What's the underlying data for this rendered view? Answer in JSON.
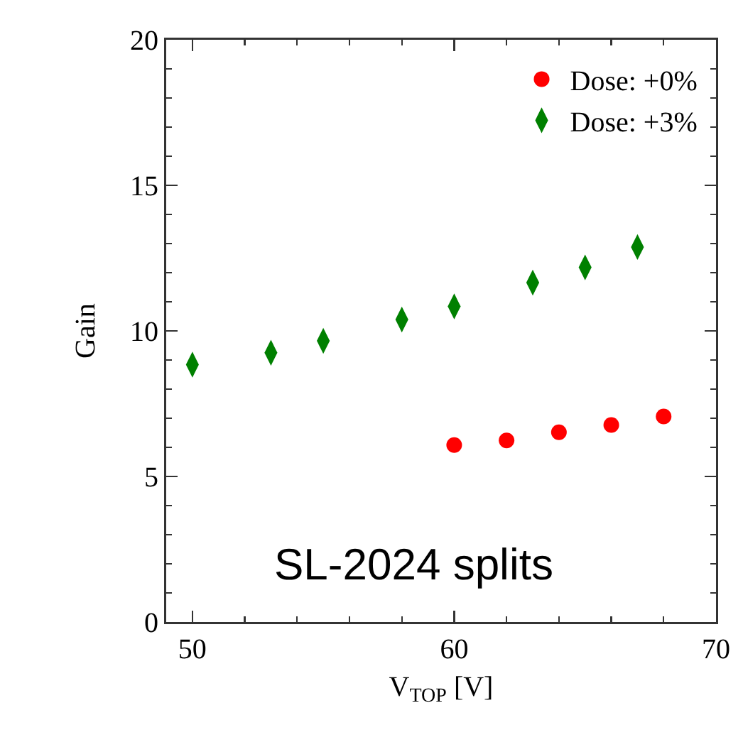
{
  "chart_data": {
    "type": "scatter",
    "xlabel": "V$_{TOP}$ [V]",
    "ylabel": "Gain",
    "xlim": [
      49,
      70
    ],
    "xticks": [
      50,
      60,
      70
    ],
    "ylim": [
      0,
      20
    ],
    "yticks": [
      0,
      5,
      10,
      15,
      20
    ],
    "grid": false,
    "legend": "top right",
    "annotations": [
      "SL-2024 splits"
    ],
    "series": [
      {
        "name": "Dose: +0%",
        "color": "#ff0000",
        "marker": "circle",
        "x": [
          60,
          62,
          64,
          66,
          68
        ],
        "values": [
          6.08,
          6.24,
          6.52,
          6.77,
          7.06
        ]
      },
      {
        "name": "Dose: +3%",
        "color": "#008000",
        "marker": "diamond",
        "x": [
          50,
          53,
          55,
          58,
          60,
          63,
          65,
          67
        ],
        "values": [
          8.84,
          9.25,
          9.66,
          10.39,
          10.84,
          11.66,
          12.18,
          12.88
        ]
      }
    ]
  }
}
